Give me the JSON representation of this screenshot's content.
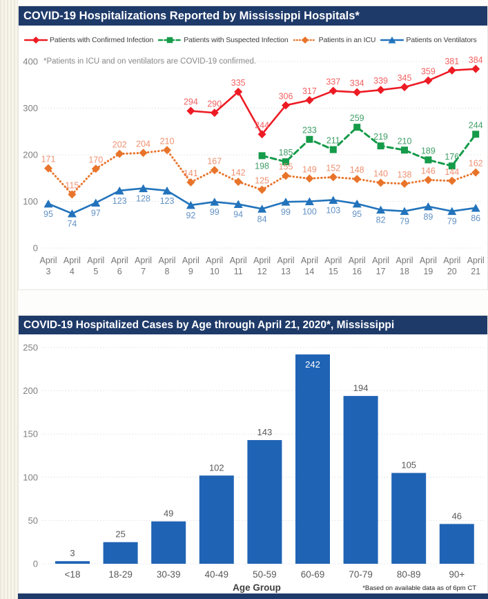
{
  "chart_data": [
    {
      "type": "line",
      "title": "COVID-19 Hospitalizations Reported by Mississippi Hospitals*",
      "note": "*Patients in ICU and on ventilators are COVID-19 confirmed.",
      "x_tick_month": "April",
      "x_tick_days": [
        "3",
        "4",
        "5",
        "6",
        "7",
        "8",
        "9",
        "10",
        "11",
        "12",
        "13",
        "14",
        "15",
        "16",
        "17",
        "18",
        "19",
        "20",
        "21"
      ],
      "categories": [
        "April 3",
        "April 4",
        "April 5",
        "April 6",
        "April 7",
        "April 8",
        "April 9",
        "April 10",
        "April 11",
        "April 12",
        "April 13",
        "April 14",
        "April 15",
        "April 16",
        "April 17",
        "April 18",
        "April 19",
        "April 20",
        "April 21"
      ],
      "ylim": [
        0,
        400
      ],
      "yticks": [
        0,
        100,
        200,
        300,
        400
      ],
      "grid": "horizontal-dotted",
      "legend_position": "top",
      "series": [
        {
          "name": "Patients with Confirmed Infection",
          "color": "#ED1B24",
          "label_color": "#F26161",
          "marker": "diamond",
          "line_style": "solid",
          "label_position": "above",
          "values": [
            null,
            null,
            null,
            null,
            null,
            null,
            294,
            290,
            335,
            244,
            306,
            317,
            337,
            334,
            339,
            345,
            359,
            381,
            384
          ]
        },
        {
          "name": "Patients with Suspected Infection",
          "color": "#159B49",
          "label_color": "#3F9E66",
          "marker": "square",
          "line_style": "dashed",
          "label_position": "above",
          "label_overrides": {
            "9": "below"
          },
          "values": [
            null,
            null,
            null,
            null,
            null,
            null,
            null,
            null,
            null,
            198,
            185,
            233,
            211,
            259,
            219,
            210,
            189,
            176,
            244
          ]
        },
        {
          "name": "Patients in an ICU",
          "color": "#E8742B",
          "label_color": "#EE9071",
          "marker": "diamond",
          "line_style": "dotted",
          "label_position": "above",
          "values": [
            171,
            115,
            170,
            202,
            204,
            210,
            141,
            167,
            142,
            125,
            155,
            149,
            152,
            148,
            140,
            138,
            146,
            144,
            162
          ]
        },
        {
          "name": "Patients on Ventilators",
          "color": "#2273BC",
          "label_color": "#6291C4",
          "marker": "triangle",
          "line_style": "solid",
          "label_position": "below",
          "values": [
            95,
            74,
            97,
            123,
            128,
            123,
            92,
            99,
            94,
            84,
            99,
            100,
            103,
            95,
            82,
            79,
            89,
            79,
            86
          ]
        }
      ]
    },
    {
      "type": "bar",
      "title": "COVID-19 Hospitalized Cases by Age through April 21, 2020*, Mississippi",
      "categories": [
        "<18",
        "18-29",
        "30-39",
        "40-49",
        "50-59",
        "60-69",
        "70-79",
        "80-89",
        "90+"
      ],
      "values": [
        3,
        25,
        49,
        102,
        143,
        242,
        194,
        105,
        46
      ],
      "xlabel": "Age Group",
      "footnote": "*Based on available data as of 6pm CT",
      "ylim": [
        0,
        250
      ],
      "yticks": [
        0,
        50,
        100,
        150,
        200,
        250
      ],
      "grid": "horizontal-dotted",
      "bar_color": "#1F63B5",
      "value_label_color": "#595959",
      "inside_label_color": "#FFFFFF",
      "inside_label_min": 220
    }
  ],
  "theme": {
    "titlebar_color": "#1E3A69",
    "grid_color": "#D8D8D8",
    "tick_color": "#7F7F7F",
    "x_tick_color": "#757575"
  }
}
